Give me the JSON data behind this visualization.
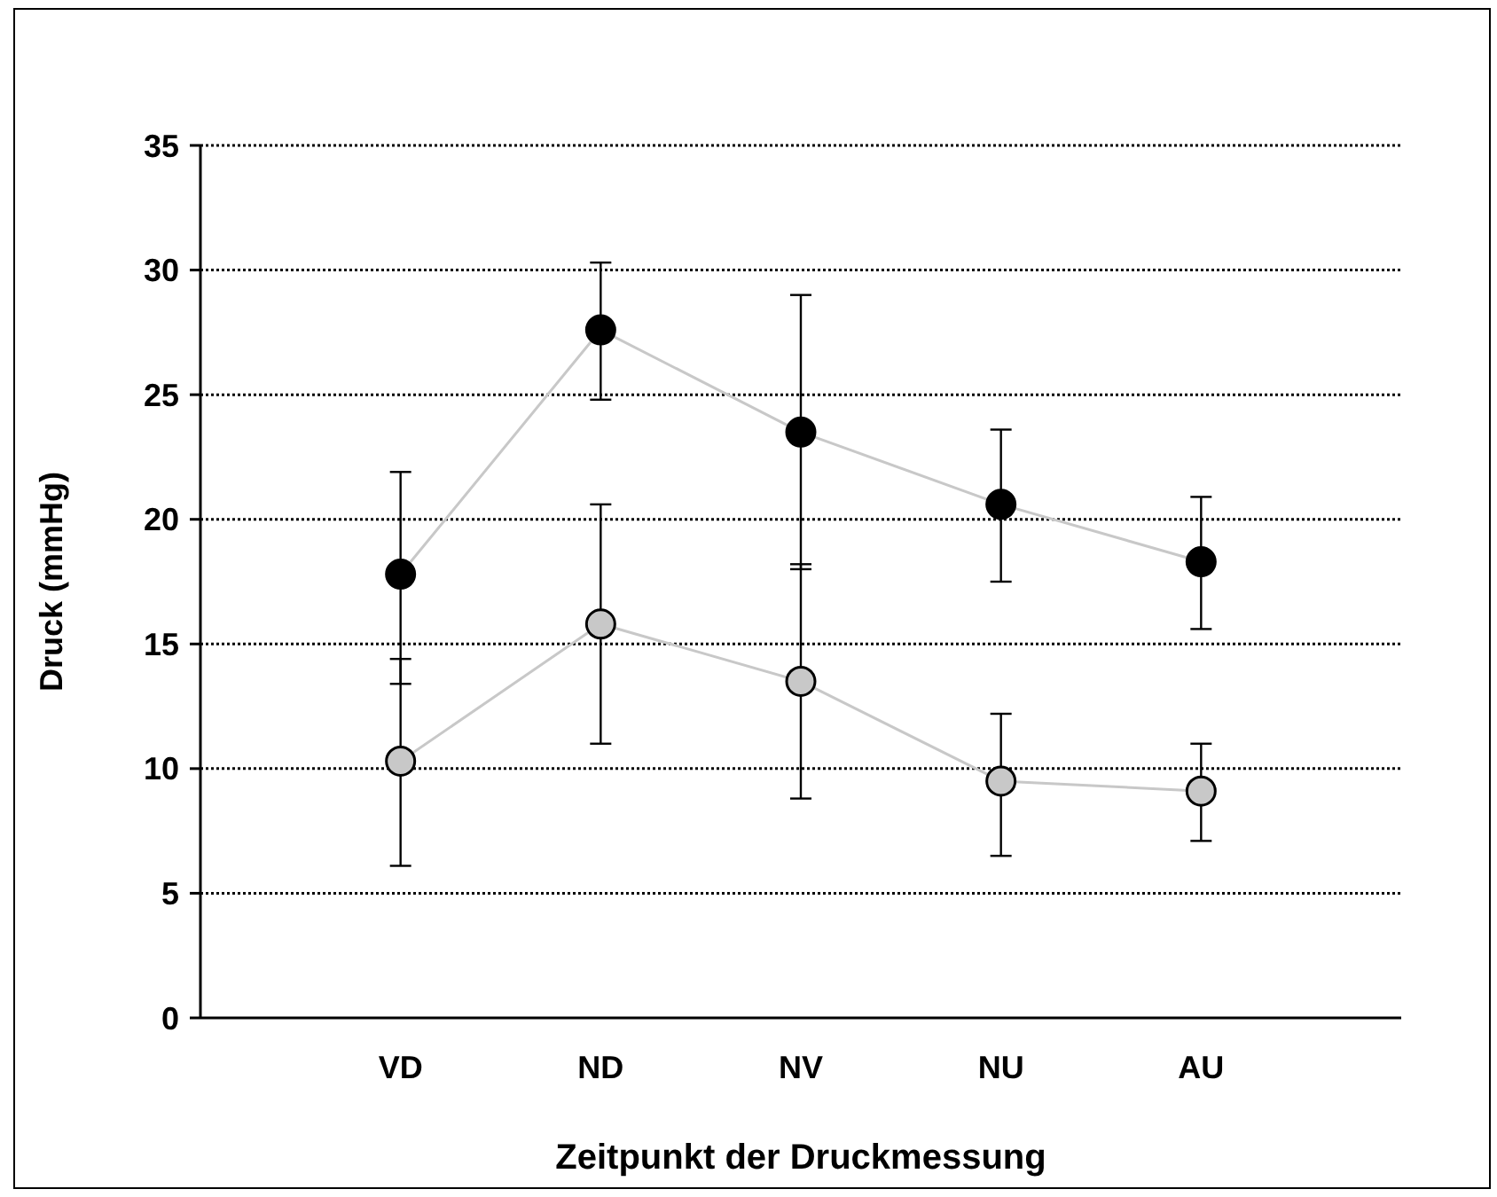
{
  "chart_data": {
    "type": "line",
    "xlabel": "Zeitpunkt der Druckmessung",
    "ylabel": "Druck (mmHg)",
    "categories": [
      "VD",
      "ND",
      "NV",
      "NU",
      "AU"
    ],
    "series": [
      {
        "color": "#000000",
        "values": [
          17.8,
          27.6,
          23.5,
          20.6,
          18.3
        ],
        "errors": [
          [
            13.4,
            21.9
          ],
          [
            24.8,
            30.3
          ],
          [
            18.0,
            29.0
          ],
          [
            17.5,
            23.6
          ],
          [
            15.6,
            20.9
          ]
        ]
      },
      {
        "color": "#c8c8c8",
        "values": [
          10.3,
          15.8,
          13.5,
          9.5,
          9.1
        ],
        "errors": [
          [
            6.1,
            14.4
          ],
          [
            11.0,
            20.6
          ],
          [
            8.8,
            18.2
          ],
          [
            6.5,
            12.2
          ],
          [
            7.1,
            11.0
          ]
        ]
      }
    ],
    "ylim": [
      0,
      35
    ],
    "yticks": [
      0,
      5,
      10,
      15,
      20,
      25,
      30,
      35
    ],
    "grid": "y",
    "marker": "circle",
    "line_style": "solid"
  }
}
